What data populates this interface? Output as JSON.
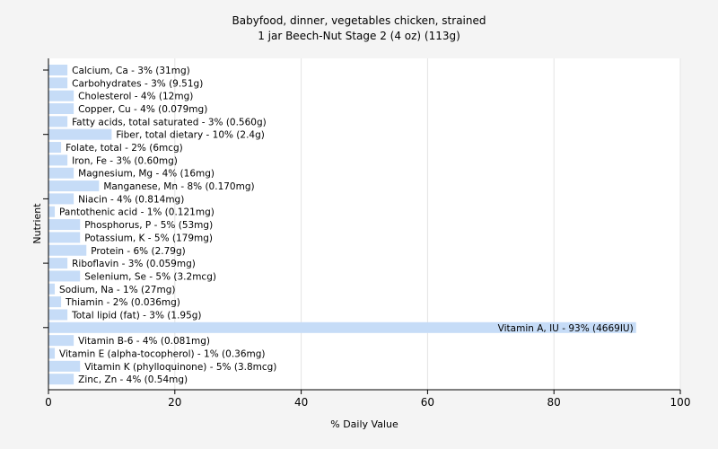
{
  "chart_data": {
    "type": "bar",
    "orientation": "horizontal",
    "title": "Babyfood, dinner, vegetables chicken, strained",
    "subtitle": "1 jar Beech-Nut Stage 2 (4 oz) (113g)",
    "xlabel": "% Daily Value",
    "ylabel": "Nutrient",
    "xlim": [
      0,
      100
    ],
    "xticks": [
      0,
      20,
      40,
      60,
      80,
      100
    ],
    "grid": "vertical",
    "legend": "none",
    "bar_color": "#c6dcf7",
    "categories": [
      "Calcium, Ca - 3% (31mg)",
      "Carbohydrates - 3% (9.51g)",
      "Cholesterol - 4% (12mg)",
      "Copper, Cu - 4% (0.079mg)",
      "Fatty acids, total saturated - 3% (0.560g)",
      "Fiber, total dietary - 10% (2.4g)",
      "Folate, total - 2% (6mcg)",
      "Iron, Fe - 3% (0.60mg)",
      "Magnesium, Mg - 4% (16mg)",
      "Manganese, Mn - 8% (0.170mg)",
      "Niacin - 4% (0.814mg)",
      "Pantothenic acid - 1% (0.121mg)",
      "Phosphorus, P - 5% (53mg)",
      "Potassium, K - 5% (179mg)",
      "Protein - 6% (2.79g)",
      "Riboflavin - 3% (0.059mg)",
      "Selenium, Se - 5% (3.2mcg)",
      "Sodium, Na - 1% (27mg)",
      "Thiamin - 2% (0.036mg)",
      "Total lipid (fat) - 3% (1.95g)",
      "Vitamin A, IU - 93% (4669IU)",
      "Vitamin B-6 - 4% (0.081mg)",
      "Vitamin E (alpha-tocopherol) - 1% (0.36mg)",
      "Vitamin K (phylloquinone) - 5% (3.8mcg)",
      "Zinc, Zn - 4% (0.54mg)"
    ],
    "values": [
      3,
      3,
      4,
      4,
      3,
      10,
      2,
      3,
      4,
      8,
      4,
      1,
      5,
      5,
      6,
      3,
      5,
      1,
      2,
      3,
      93,
      4,
      1,
      5,
      4
    ]
  }
}
